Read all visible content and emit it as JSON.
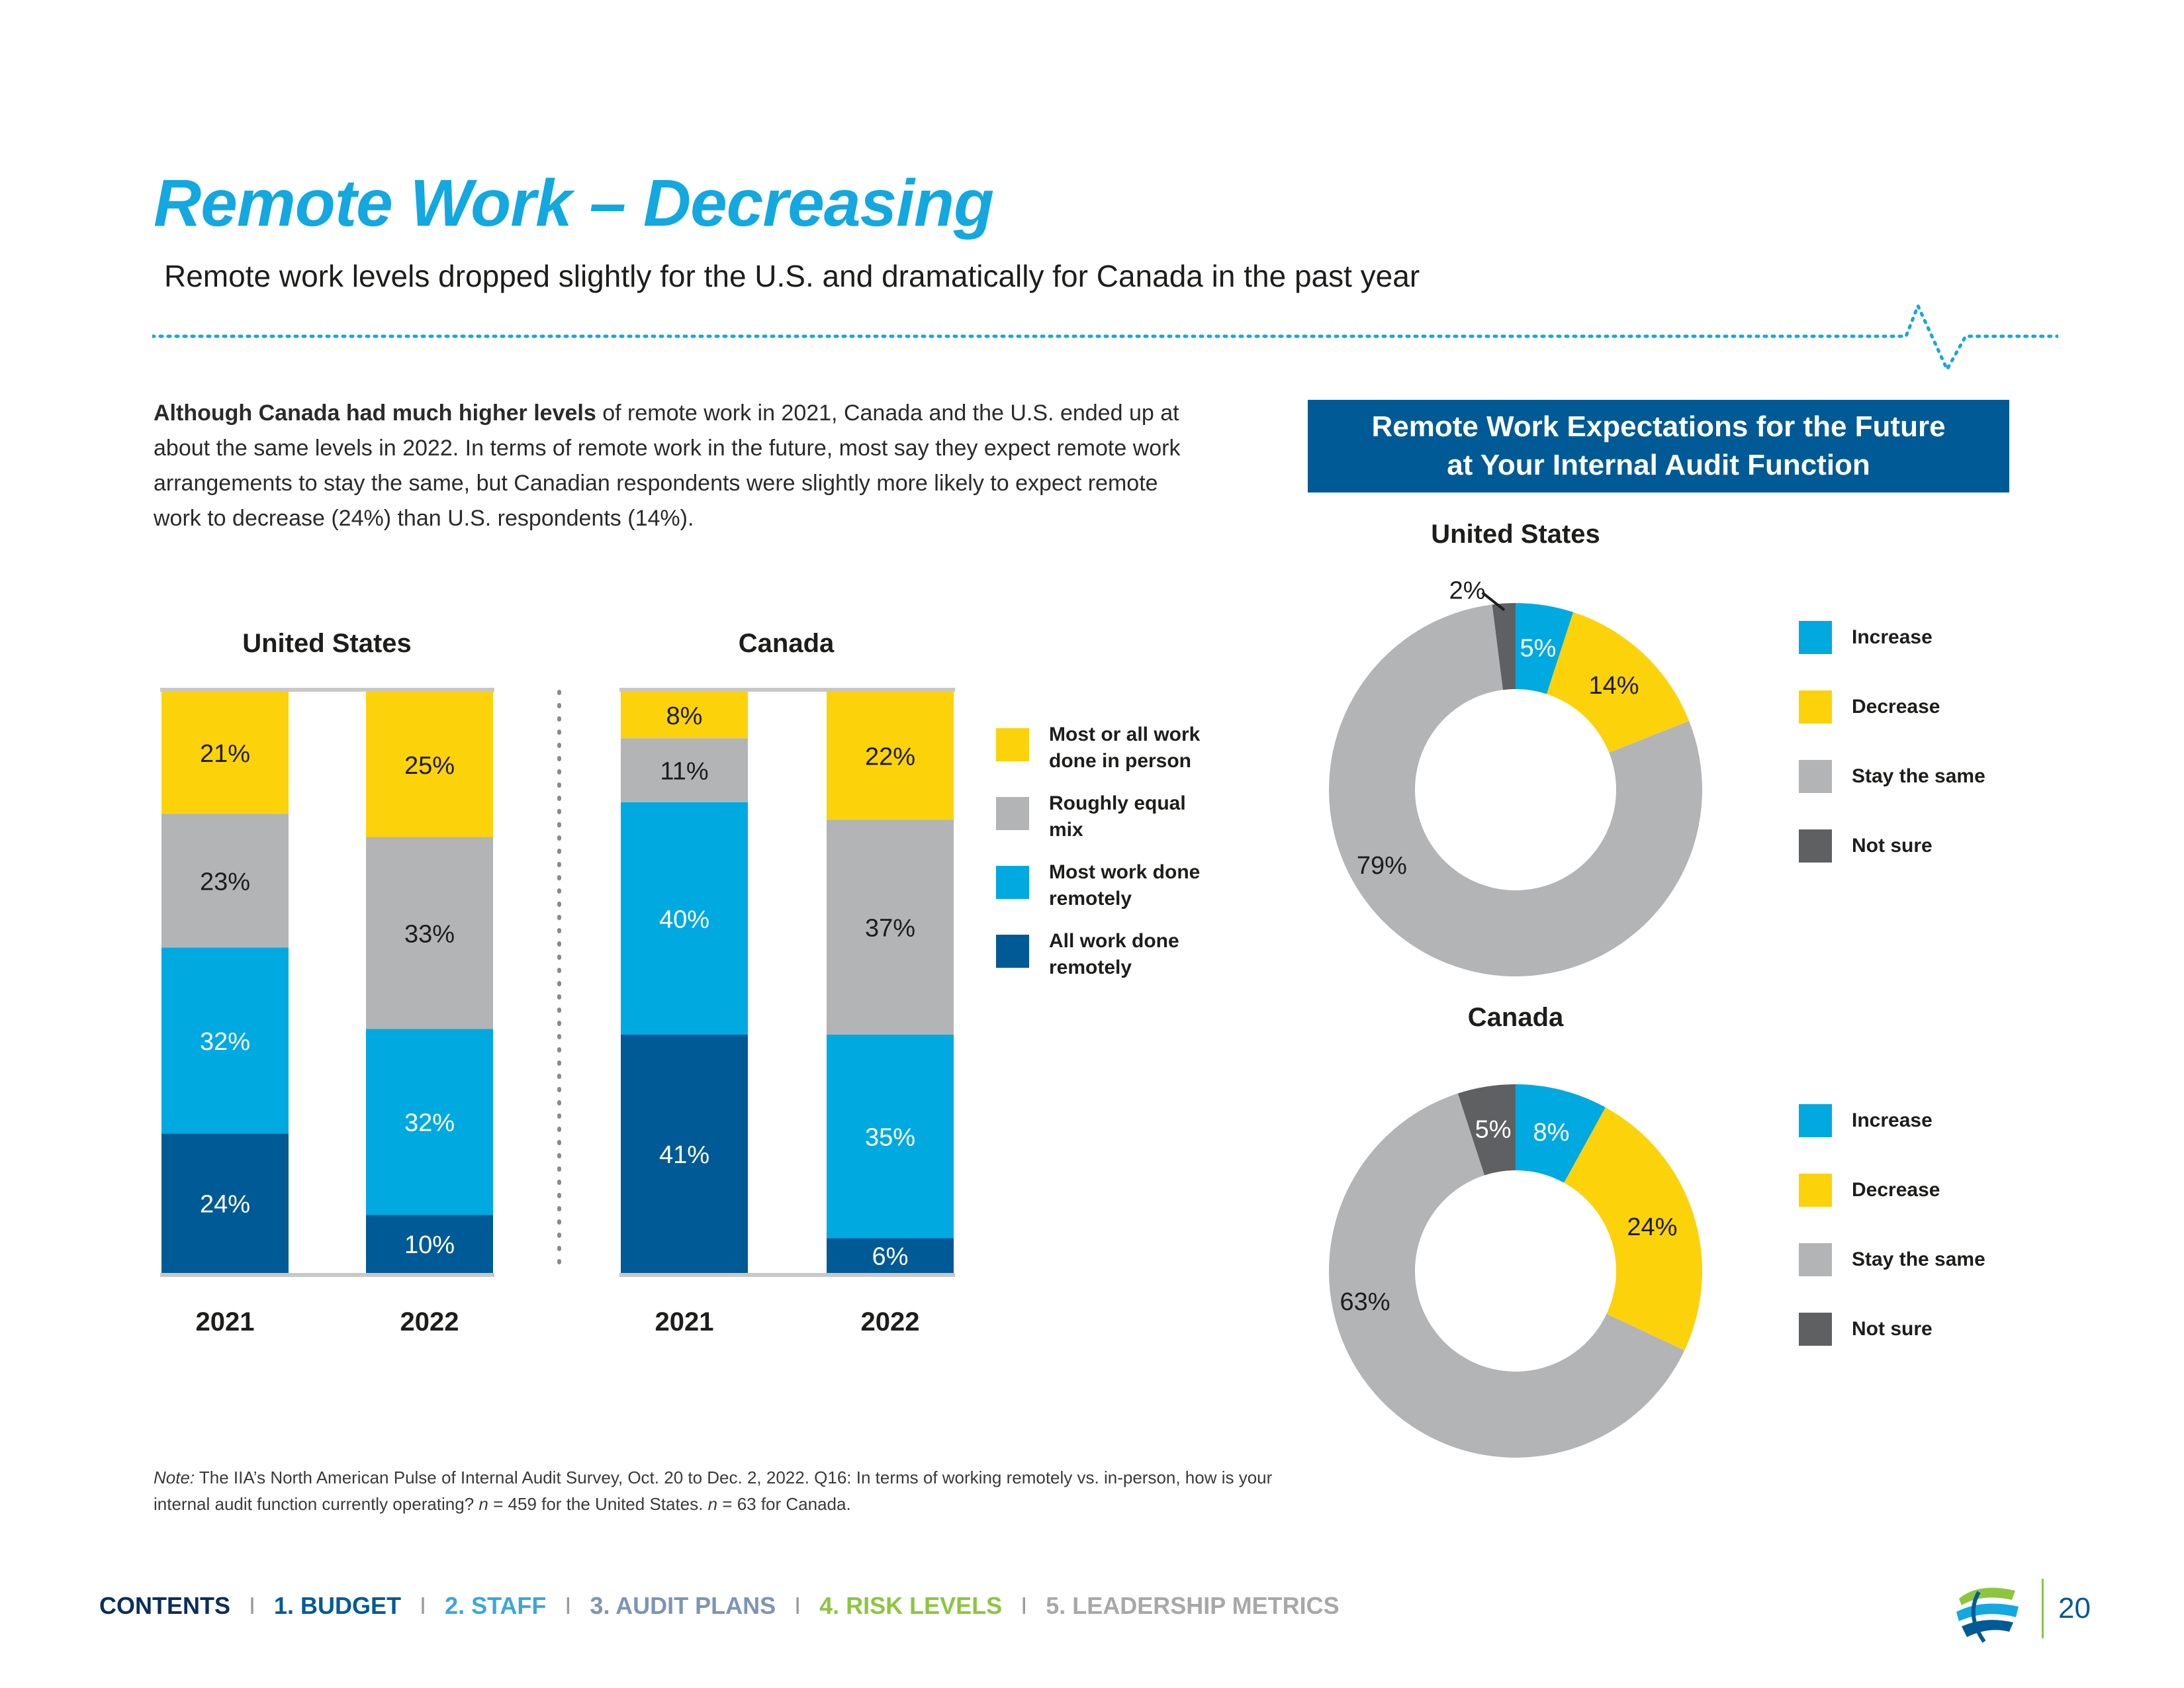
{
  "header": {
    "title": "Remote Work – Decreasing",
    "subtitle": "Remote work levels dropped slightly for the U.S. and dramatically for Canada in the past year"
  },
  "intro": {
    "bold": "Although Canada had much higher levels",
    "rest": " of remote work in 2021, Canada and the U.S. ended up at about the same levels in 2022. In terms of remote work in the future, most say they expect remote work arrangements to stay the same, but Canadian respondents were slightly more likely to expect remote work to decrease (24%) than U.S. respondents (14%)."
  },
  "banner": {
    "line1": "Remote Work Expectations for the Future",
    "line2": "at Your Internal Audit Function"
  },
  "bar_legend": [
    {
      "label_line1": "Most or all work",
      "label_line2": "done in person",
      "color": "#fcd20b"
    },
    {
      "label_line1": "Roughly equal",
      "label_line2": "mix",
      "color": "#b3b4b6"
    },
    {
      "label_line1": "Most work done",
      "label_line2": "remotely",
      "color": "#00a9e0"
    },
    {
      "label_line1": "All work done",
      "label_line2": "remotely",
      "color": "#005a96"
    }
  ],
  "pie_legend": [
    {
      "label": "Increase",
      "color": "#00a9e0"
    },
    {
      "label": "Decrease",
      "color": "#fcd20b"
    },
    {
      "label": "Stay the same",
      "color": "#b3b4b6"
    },
    {
      "label": "Not sure",
      "color": "#5f6062"
    }
  ],
  "chart_data": [
    {
      "type": "bar",
      "stacked": true,
      "title": "United States",
      "categories": [
        "2021",
        "2022"
      ],
      "series": [
        {
          "name": "All work done remotely",
          "values": [
            24,
            10
          ],
          "color": "#005a96"
        },
        {
          "name": "Most work done remotely",
          "values": [
            32,
            32
          ],
          "color": "#00a9e0"
        },
        {
          "name": "Roughly equal mix",
          "values": [
            23,
            33
          ],
          "color": "#b3b4b6"
        },
        {
          "name": "Most or all work done in person",
          "values": [
            21,
            25
          ],
          "color": "#fcd20b"
        }
      ],
      "labels": [
        [
          "24%",
          "32%",
          "23%",
          "21%"
        ],
        [
          "10%",
          "32%",
          "33%",
          "25%"
        ]
      ],
      "ylim": [
        0,
        100
      ]
    },
    {
      "type": "bar",
      "stacked": true,
      "title": "Canada",
      "categories": [
        "2021",
        "2022"
      ],
      "series": [
        {
          "name": "All work done remotely",
          "values": [
            41,
            6
          ],
          "color": "#005a96"
        },
        {
          "name": "Most work done remotely",
          "values": [
            40,
            35
          ],
          "color": "#00a9e0"
        },
        {
          "name": "Roughly equal mix",
          "values": [
            11,
            37
          ],
          "color": "#b3b4b6"
        },
        {
          "name": "Most or all work done in person",
          "values": [
            8,
            22
          ],
          "color": "#fcd20b"
        }
      ],
      "labels": [
        [
          "41%",
          "40%",
          "11%",
          "8%"
        ],
        [
          "6%",
          "35%",
          "37%",
          "22%"
        ]
      ],
      "ylim": [
        0,
        100
      ]
    },
    {
      "type": "pie",
      "donut": true,
      "title": "United States",
      "categories": [
        "Increase",
        "Decrease",
        "Stay the same",
        "Not sure"
      ],
      "values": [
        5,
        14,
        79,
        2
      ],
      "labels": [
        "5%",
        "14%",
        "79%",
        "2%"
      ],
      "colors": [
        "#00a9e0",
        "#fcd20b",
        "#b3b4b6",
        "#5f6062"
      ]
    },
    {
      "type": "pie",
      "donut": true,
      "title": "Canada",
      "categories": [
        "Increase",
        "Decrease",
        "Stay the same",
        "Not sure"
      ],
      "values": [
        8,
        24,
        63,
        5
      ],
      "labels": [
        "8%",
        "24%",
        "63%",
        "5%"
      ],
      "colors": [
        "#00a9e0",
        "#fcd20b",
        "#b3b4b6",
        "#5f6062"
      ]
    }
  ],
  "note": {
    "prefix": "Note:",
    "text1": " The IIA’s North American Pulse of Internal Audit Survey, Oct. 20 to Dec. 2, 2022. Q16: In terms of working remotely vs. in-person, how is your internal audit function currently operating? ",
    "n1": "n",
    "text2": " = 459 for the United States. ",
    "n2": "n",
    "text3": " = 63 for Canada."
  },
  "nav": {
    "items": [
      {
        "label": "CONTENTS",
        "color": "#0b2e5c"
      },
      {
        "label": "1. BUDGET",
        "color": "#005a96"
      },
      {
        "label": "2. STAFF",
        "color": "#3aa7dc"
      },
      {
        "label": "3. AUDIT PLANS",
        "color": "#7d95b5"
      },
      {
        "label": "4. RISK LEVELS",
        "color": "#8cc63f"
      },
      {
        "label": "5. LEADERSHIP METRICS",
        "color": "#a8a8a8"
      }
    ],
    "separator": "I"
  },
  "page_number": "20",
  "logo_icon": "iia-globe-logo-icon"
}
